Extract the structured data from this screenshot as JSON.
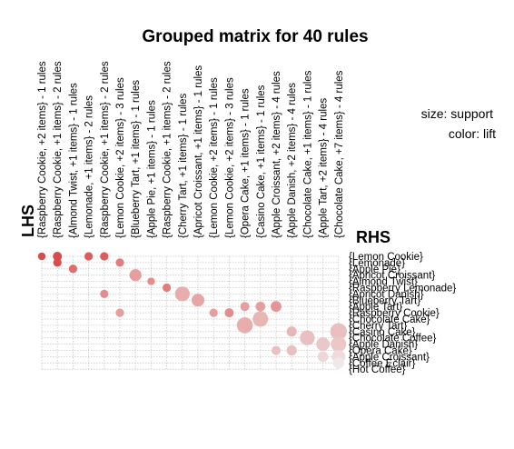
{
  "chart_data": {
    "type": "scatter",
    "title": "Grouped matrix for 40 rules",
    "xlabel": "LHS",
    "ylabel": "RHS",
    "legend": {
      "size": "size: support",
      "color": "color: lift",
      "placement": "top-right"
    },
    "grid": true,
    "lhs": [
      "{Raspberry Cookie, +2 items} - 1 rules",
      "{Raspberry Cookie, +1 items} - 2 rules",
      "{Almond Twist, +1 items} - 1 rules",
      "{Lemonade, +1 items} - 2 rules",
      "{Raspberry Cookie, +1 items} - 2 rules",
      "{Lemon Cookie, +2 items} - 3 rules",
      "{Blueberry Tart, +1 items} - 1 rules",
      "{Apple Pie, +1 items} - 1 rules",
      "{Raspberry Cookie, +1 items} - 2 rules",
      "{Cherry Tart, +1 items} - 1 rules",
      "{Apricot Croissant, +1 items} - 1 rules",
      "{Lemon Cookie, +2 items} - 1 rules",
      "{Lemon Cookie, +2 items} - 3 rules",
      "{Opera Cake, +1 items} - 1 rules",
      "{Casino Cake, +1 items} - 1 rules",
      "{Apple Croissant, +2 items} - 4 rules",
      "{Apple Danish, +2 items} - 4 rules",
      "{Chocolate Cake, +1 items} - 1 rules",
      "{Apple Tart, +2 items} - 4 rules",
      "{Chocolate Cake, +7 items} - 4 rules"
    ],
    "rhs": [
      "{Lemon Cookie}",
      "{Lemonade}",
      "{Apple Pie}",
      "{Apricot Croissant}",
      "{Almond Twist}",
      "{Raspberry Lemonade}",
      "{Apricot Danish}",
      "{Blueberry Tart}",
      "{Apple Tart}",
      "{Raspberry Cookie}",
      "{Chocolate Cake}",
      "{Cherry Tart}",
      "{Casino Cake}",
      "{Chocolate Coffee}",
      "{Apple Danish}",
      "{Opera Cake}",
      "{Apple Croissant}",
      "{Coffee Eclair}",
      "{Hot Coffee}"
    ],
    "points": [
      {
        "x": 0,
        "y": 0,
        "support": 0.02,
        "lift": 1.0
      },
      {
        "x": 1,
        "y": 0,
        "support": 0.04,
        "lift": 1.0
      },
      {
        "x": 1,
        "y": 1,
        "support": 0.03,
        "lift": 1.0
      },
      {
        "x": 3,
        "y": 0,
        "support": 0.03,
        "lift": 0.9
      },
      {
        "x": 4,
        "y": 0,
        "support": 0.03,
        "lift": 0.9
      },
      {
        "x": 2,
        "y": 2,
        "support": 0.03,
        "lift": 0.8
      },
      {
        "x": 5,
        "y": 1,
        "support": 0.03,
        "lift": 0.7
      },
      {
        "x": 6,
        "y": 3,
        "support": 0.1,
        "lift": 0.5
      },
      {
        "x": 7,
        "y": 4,
        "support": 0.02,
        "lift": 0.6
      },
      {
        "x": 8,
        "y": 5,
        "support": 0.03,
        "lift": 0.7
      },
      {
        "x": 4,
        "y": 6,
        "support": 0.03,
        "lift": 0.6
      },
      {
        "x": 9,
        "y": 6,
        "support": 0.18,
        "lift": 0.4
      },
      {
        "x": 10,
        "y": 7,
        "support": 0.12,
        "lift": 0.45
      },
      {
        "x": 11,
        "y": 9,
        "support": 0.03,
        "lift": 0.5
      },
      {
        "x": 5,
        "y": 9,
        "support": 0.03,
        "lift": 0.5
      },
      {
        "x": 12,
        "y": 9,
        "support": 0.04,
        "lift": 0.6
      },
      {
        "x": 13,
        "y": 8,
        "support": 0.04,
        "lift": 0.5
      },
      {
        "x": 14,
        "y": 8,
        "support": 0.05,
        "lift": 0.5
      },
      {
        "x": 15,
        "y": 8,
        "support": 0.07,
        "lift": 0.55
      },
      {
        "x": 13,
        "y": 11,
        "support": 0.22,
        "lift": 0.4
      },
      {
        "x": 14,
        "y": 10,
        "support": 0.2,
        "lift": 0.35
      },
      {
        "x": 16,
        "y": 12,
        "support": 0.06,
        "lift": 0.35
      },
      {
        "x": 17,
        "y": 13,
        "support": 0.18,
        "lift": 0.3
      },
      {
        "x": 16,
        "y": 15,
        "support": 0.06,
        "lift": 0.3
      },
      {
        "x": 15,
        "y": 15,
        "support": 0.04,
        "lift": 0.3
      },
      {
        "x": 18,
        "y": 14,
        "support": 0.14,
        "lift": 0.25
      },
      {
        "x": 19,
        "y": 12,
        "support": 0.25,
        "lift": 0.3
      },
      {
        "x": 19,
        "y": 14,
        "support": 0.2,
        "lift": 0.25
      },
      {
        "x": 18,
        "y": 16,
        "support": 0.07,
        "lift": 0.15
      },
      {
        "x": 19,
        "y": 16,
        "support": 0.14,
        "lift": 0.12
      },
      {
        "x": 19,
        "y": 17,
        "support": 0.08,
        "lift": 0.05
      }
    ],
    "colors": {
      "high_lift": "#dc4b4b",
      "low_lift": "#f0f0f0",
      "grid": "#c8c8c8"
    }
  }
}
